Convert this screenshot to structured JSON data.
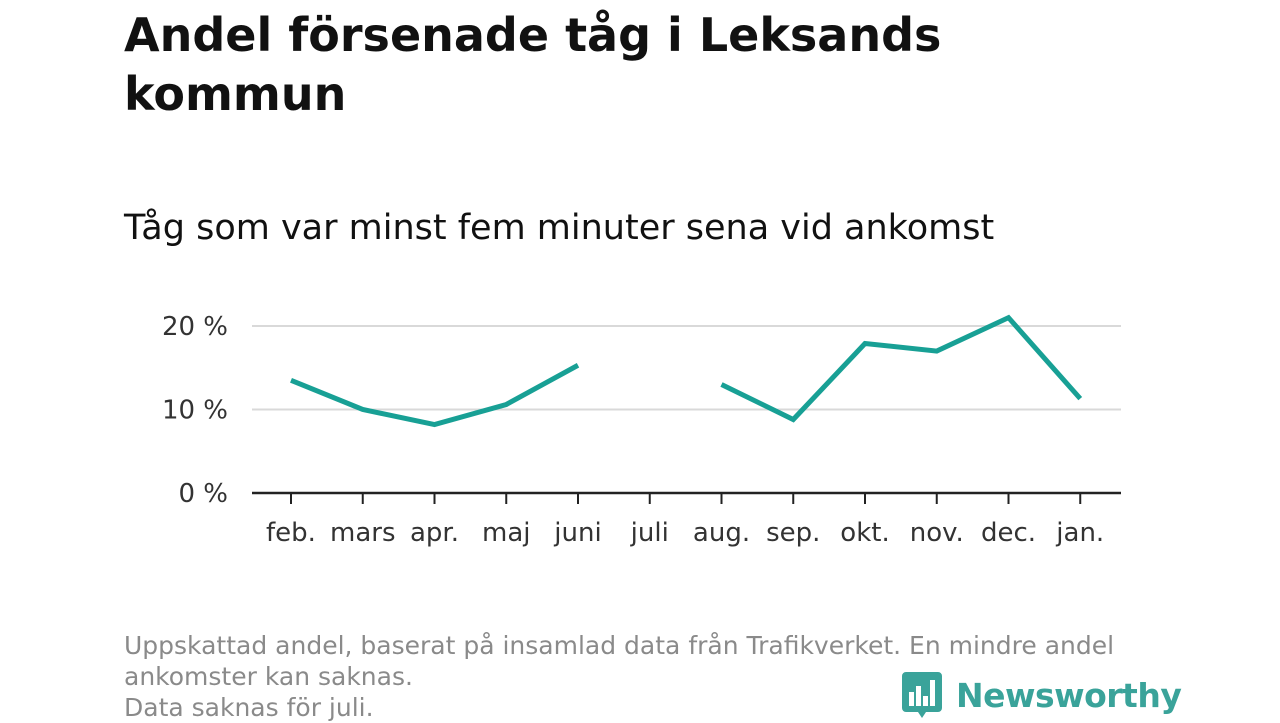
{
  "title": "Andel försenade tåg i Leksands kommun",
  "subtitle": "Tåg som var minst fem minuter sena vid ankomst",
  "footnote": {
    "line1": "Uppskattad andel, baserat på insamlad data från Trafikverket. En mindre andel",
    "line2": "ankomster kan saknas.",
    "line3": "Data saknas för juli."
  },
  "brand": {
    "name": "Newsworthy",
    "icon": "bar-chart-speech-bubble-icon",
    "color": "#3aa39a"
  },
  "chart_data": {
    "type": "line",
    "categories": [
      "feb.",
      "mars",
      "apr.",
      "maj",
      "juni",
      "juli",
      "aug.",
      "sep.",
      "okt.",
      "nov.",
      "dec.",
      "jan."
    ],
    "series": [
      {
        "values": [
          13.5,
          10.0,
          8.2,
          10.6,
          15.3,
          null,
          13.0,
          8.8,
          17.9,
          17.0,
          21.0,
          11.3
        ],
        "color": "#18a095"
      }
    ],
    "yticks": [
      {
        "value": 0,
        "label": "0 %"
      },
      {
        "value": 10,
        "label": "10 %"
      },
      {
        "value": 20,
        "label": "20 %"
      }
    ],
    "ylim": [
      0,
      22
    ],
    "grid": true,
    "legend": "none"
  }
}
